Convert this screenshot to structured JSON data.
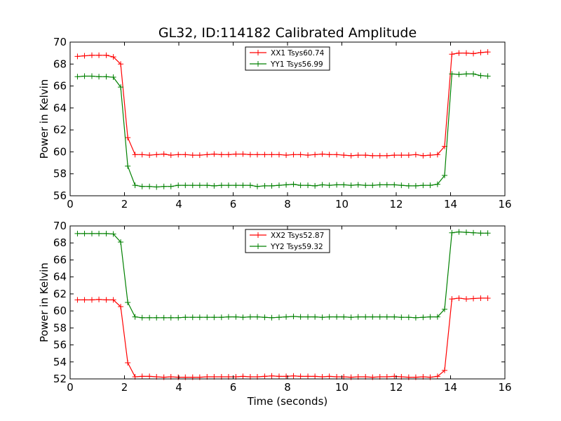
{
  "title": "GL32, ID:114182 Calibrated Amplitude",
  "chart_data": [
    {
      "type": "line",
      "ylabel": "Power in Kelvin",
      "xlabel": "",
      "xlim": [
        0,
        16
      ],
      "ylim": [
        56,
        70
      ],
      "xticks": [
        0,
        2,
        4,
        6,
        8,
        10,
        12,
        14,
        16
      ],
      "yticks": [
        56,
        58,
        60,
        62,
        64,
        66,
        68,
        70
      ],
      "legend_position": "top-center",
      "x": [
        0.27,
        0.53,
        0.8,
        1.06,
        1.33,
        1.59,
        1.86,
        2.12,
        2.39,
        2.65,
        2.92,
        3.18,
        3.45,
        3.71,
        3.98,
        4.24,
        4.51,
        4.77,
        5.04,
        5.3,
        5.57,
        5.83,
        6.1,
        6.36,
        6.63,
        6.89,
        7.16,
        7.42,
        7.69,
        7.95,
        8.22,
        8.48,
        8.75,
        9.01,
        9.28,
        9.54,
        9.81,
        10.07,
        10.34,
        10.6,
        10.87,
        11.13,
        11.4,
        11.66,
        11.93,
        12.19,
        12.46,
        12.72,
        12.99,
        13.25,
        13.52,
        13.78,
        14.05,
        14.31,
        14.58,
        14.84,
        15.11,
        15.37
      ],
      "series": [
        {
          "name": "XX1 Tsys60.74",
          "color": "#ff0000",
          "values": [
            68.7,
            68.75,
            68.8,
            68.8,
            68.8,
            68.65,
            68.0,
            61.3,
            59.75,
            59.75,
            59.7,
            59.75,
            59.8,
            59.7,
            59.75,
            59.75,
            59.7,
            59.7,
            59.75,
            59.8,
            59.75,
            59.75,
            59.8,
            59.8,
            59.75,
            59.75,
            59.75,
            59.75,
            59.75,
            59.7,
            59.75,
            59.75,
            59.7,
            59.75,
            59.8,
            59.75,
            59.75,
            59.7,
            59.65,
            59.7,
            59.7,
            59.65,
            59.65,
            59.65,
            59.7,
            59.7,
            59.7,
            59.75,
            59.65,
            59.7,
            59.75,
            60.5,
            68.9,
            69.0,
            69.0,
            68.95,
            69.05,
            69.1
          ]
        },
        {
          "name": "YY1 Tsys56.99",
          "color": "#008000",
          "values": [
            66.85,
            66.9,
            66.9,
            66.85,
            66.85,
            66.8,
            65.9,
            58.7,
            56.95,
            56.85,
            56.85,
            56.8,
            56.85,
            56.85,
            56.95,
            56.95,
            56.95,
            56.95,
            56.95,
            56.9,
            56.95,
            56.95,
            56.95,
            56.95,
            56.95,
            56.85,
            56.9,
            56.9,
            56.95,
            57.0,
            57.05,
            56.95,
            56.95,
            56.9,
            57.0,
            56.95,
            57.0,
            57.0,
            56.95,
            57.0,
            56.95,
            56.95,
            57.0,
            57.0,
            57.0,
            56.95,
            56.9,
            56.9,
            56.95,
            56.95,
            57.05,
            57.85,
            67.1,
            67.05,
            67.1,
            67.1,
            66.95,
            66.9
          ]
        }
      ]
    },
    {
      "type": "line",
      "ylabel": "Power in Kelvin",
      "xlabel": "Time (seconds)",
      "xlim": [
        0,
        16
      ],
      "ylim": [
        52,
        70
      ],
      "xticks": [
        0,
        2,
        4,
        6,
        8,
        10,
        12,
        14,
        16
      ],
      "yticks": [
        52,
        54,
        56,
        58,
        60,
        62,
        64,
        66,
        68,
        70
      ],
      "legend_position": "top-center",
      "x": [
        0.27,
        0.53,
        0.8,
        1.06,
        1.33,
        1.59,
        1.86,
        2.12,
        2.39,
        2.65,
        2.92,
        3.18,
        3.45,
        3.71,
        3.98,
        4.24,
        4.51,
        4.77,
        5.04,
        5.3,
        5.57,
        5.83,
        6.1,
        6.36,
        6.63,
        6.89,
        7.16,
        7.42,
        7.69,
        7.95,
        8.22,
        8.48,
        8.75,
        9.01,
        9.28,
        9.54,
        9.81,
        10.07,
        10.34,
        10.6,
        10.87,
        11.13,
        11.4,
        11.66,
        11.93,
        12.19,
        12.46,
        12.72,
        12.99,
        13.25,
        13.52,
        13.78,
        14.05,
        14.31,
        14.58,
        14.84,
        15.11,
        15.37
      ],
      "series": [
        {
          "name": "XX2 Tsys52.87",
          "color": "#ff0000",
          "values": [
            61.3,
            61.3,
            61.3,
            61.35,
            61.3,
            61.3,
            60.5,
            53.9,
            52.25,
            52.3,
            52.3,
            52.25,
            52.2,
            52.25,
            52.2,
            52.2,
            52.2,
            52.2,
            52.25,
            52.25,
            52.25,
            52.25,
            52.25,
            52.3,
            52.25,
            52.25,
            52.3,
            52.35,
            52.3,
            52.3,
            52.35,
            52.3,
            52.3,
            52.3,
            52.25,
            52.3,
            52.25,
            52.25,
            52.2,
            52.25,
            52.25,
            52.2,
            52.25,
            52.25,
            52.3,
            52.25,
            52.2,
            52.2,
            52.25,
            52.2,
            52.3,
            53.0,
            61.4,
            61.5,
            61.4,
            61.45,
            61.5,
            61.5
          ]
        },
        {
          "name": "YY2 Tsys59.32",
          "color": "#008000",
          "values": [
            69.1,
            69.1,
            69.1,
            69.1,
            69.1,
            69.05,
            68.1,
            61.0,
            59.3,
            59.2,
            59.2,
            59.2,
            59.2,
            59.2,
            59.2,
            59.25,
            59.25,
            59.25,
            59.25,
            59.25,
            59.25,
            59.3,
            59.3,
            59.25,
            59.3,
            59.3,
            59.25,
            59.2,
            59.25,
            59.3,
            59.35,
            59.3,
            59.3,
            59.3,
            59.25,
            59.3,
            59.3,
            59.3,
            59.25,
            59.3,
            59.3,
            59.3,
            59.3,
            59.3,
            59.3,
            59.25,
            59.25,
            59.2,
            59.25,
            59.3,
            59.3,
            60.2,
            69.2,
            69.3,
            69.25,
            69.2,
            69.15,
            69.15
          ]
        }
      ]
    }
  ]
}
